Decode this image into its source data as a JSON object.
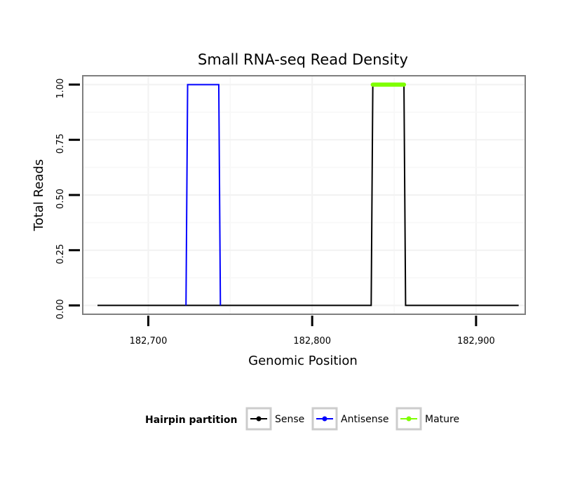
{
  "chart_data": {
    "type": "line",
    "title": "Small RNA-seq Read Density",
    "xlabel": "Genomic Position",
    "ylabel": "Total Reads",
    "xlim": [
      182660,
      182930
    ],
    "ylim": [
      -0.04,
      1.04
    ],
    "x_ticks": [
      182700,
      182800,
      182900
    ],
    "x_tick_labels": [
      "182,700",
      "182,800",
      "182,900"
    ],
    "y_ticks": [
      0,
      0.25,
      0.5,
      0.75,
      1.0
    ],
    "y_tick_labels": [
      "0.00",
      "0.25",
      "0.50",
      "0.75",
      "1.00"
    ],
    "grid": true,
    "legend": {
      "title": "Hairpin partition",
      "position": "bottom",
      "entries": [
        "Sense",
        "Antisense",
        "Mature"
      ]
    },
    "series": [
      {
        "name": "Sense",
        "color": "#000000",
        "x": [
          182669,
          182836,
          182837,
          182856,
          182857,
          182926
        ],
        "y": [
          0,
          0,
          1,
          1,
          0,
          0
        ]
      },
      {
        "name": "Antisense",
        "color": "#0000ff",
        "x": [
          182723,
          182724,
          182743,
          182744
        ],
        "y": [
          0,
          1,
          1,
          0
        ]
      },
      {
        "name": "Mature",
        "color": "#7fff00",
        "x": [
          182837,
          182856
        ],
        "y": [
          1,
          1
        ]
      }
    ]
  }
}
